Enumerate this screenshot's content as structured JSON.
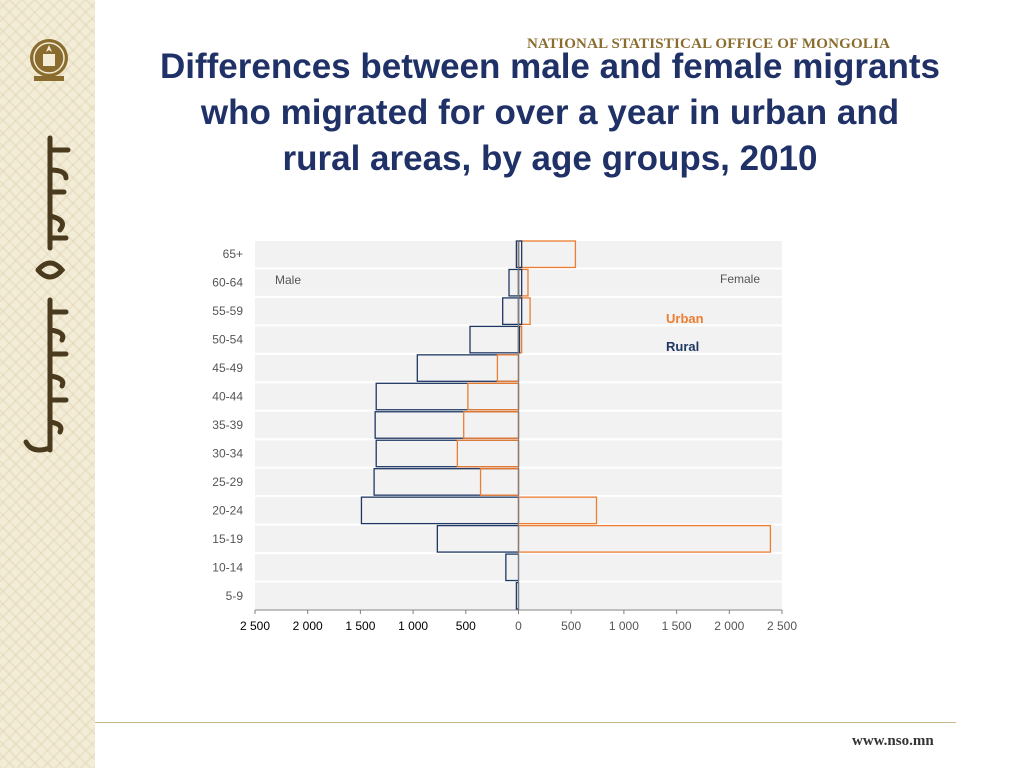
{
  "header": {
    "organization": "NATIONAL STATISTICAL OFFICE OF MONGOLIA",
    "title_lines": [
      "Differences between male and female migrants",
      "who migrated for over a year in urban and",
      "rural areas, by age groups, 2010"
    ]
  },
  "footer": {
    "url": "www.nso.mn"
  },
  "colors": {
    "urban": "#ed7d31",
    "rural": "#1f3864",
    "title": "#1f3167",
    "plot_bg": "#f2f2f2"
  },
  "chart_data": {
    "type": "bar",
    "orientation": "horizontal",
    "subtype": "population-pyramid",
    "categories": [
      "65+",
      "60-64",
      "55-59",
      "50-54",
      "45-49",
      "40-44",
      "35-39",
      "30-34",
      "25-29",
      "20-24",
      "15-19",
      "10-14",
      "5-9"
    ],
    "xlim": [
      -2500,
      2500
    ],
    "x_ticks": [
      -2500,
      -2000,
      -1500,
      -1000,
      -500,
      0,
      500,
      1000,
      1500,
      2000,
      2500
    ],
    "x_tick_labels": [
      "2 500",
      "2 000",
      "1 500",
      "1 000",
      "500",
      "0",
      "500",
      "1 000",
      "1 500",
      "2 000",
      "2 500"
    ],
    "side_labels": {
      "left": "Male",
      "right": "Female"
    },
    "series": [
      {
        "name": "Urban",
        "male": [
          0,
          0,
          0,
          0,
          200,
          480,
          520,
          580,
          360,
          0,
          0,
          0,
          0
        ],
        "female": [
          540,
          90,
          110,
          30,
          0,
          0,
          0,
          0,
          0,
          740,
          2390,
          0,
          0
        ]
      },
      {
        "name": "Rural",
        "male": [
          20,
          90,
          150,
          460,
          960,
          1350,
          1360,
          1350,
          1370,
          1490,
          770,
          120,
          20
        ],
        "female": [
          30,
          30,
          30,
          10,
          0,
          0,
          0,
          0,
          0,
          0,
          0,
          0,
          0
        ]
      }
    ],
    "grid": true
  }
}
